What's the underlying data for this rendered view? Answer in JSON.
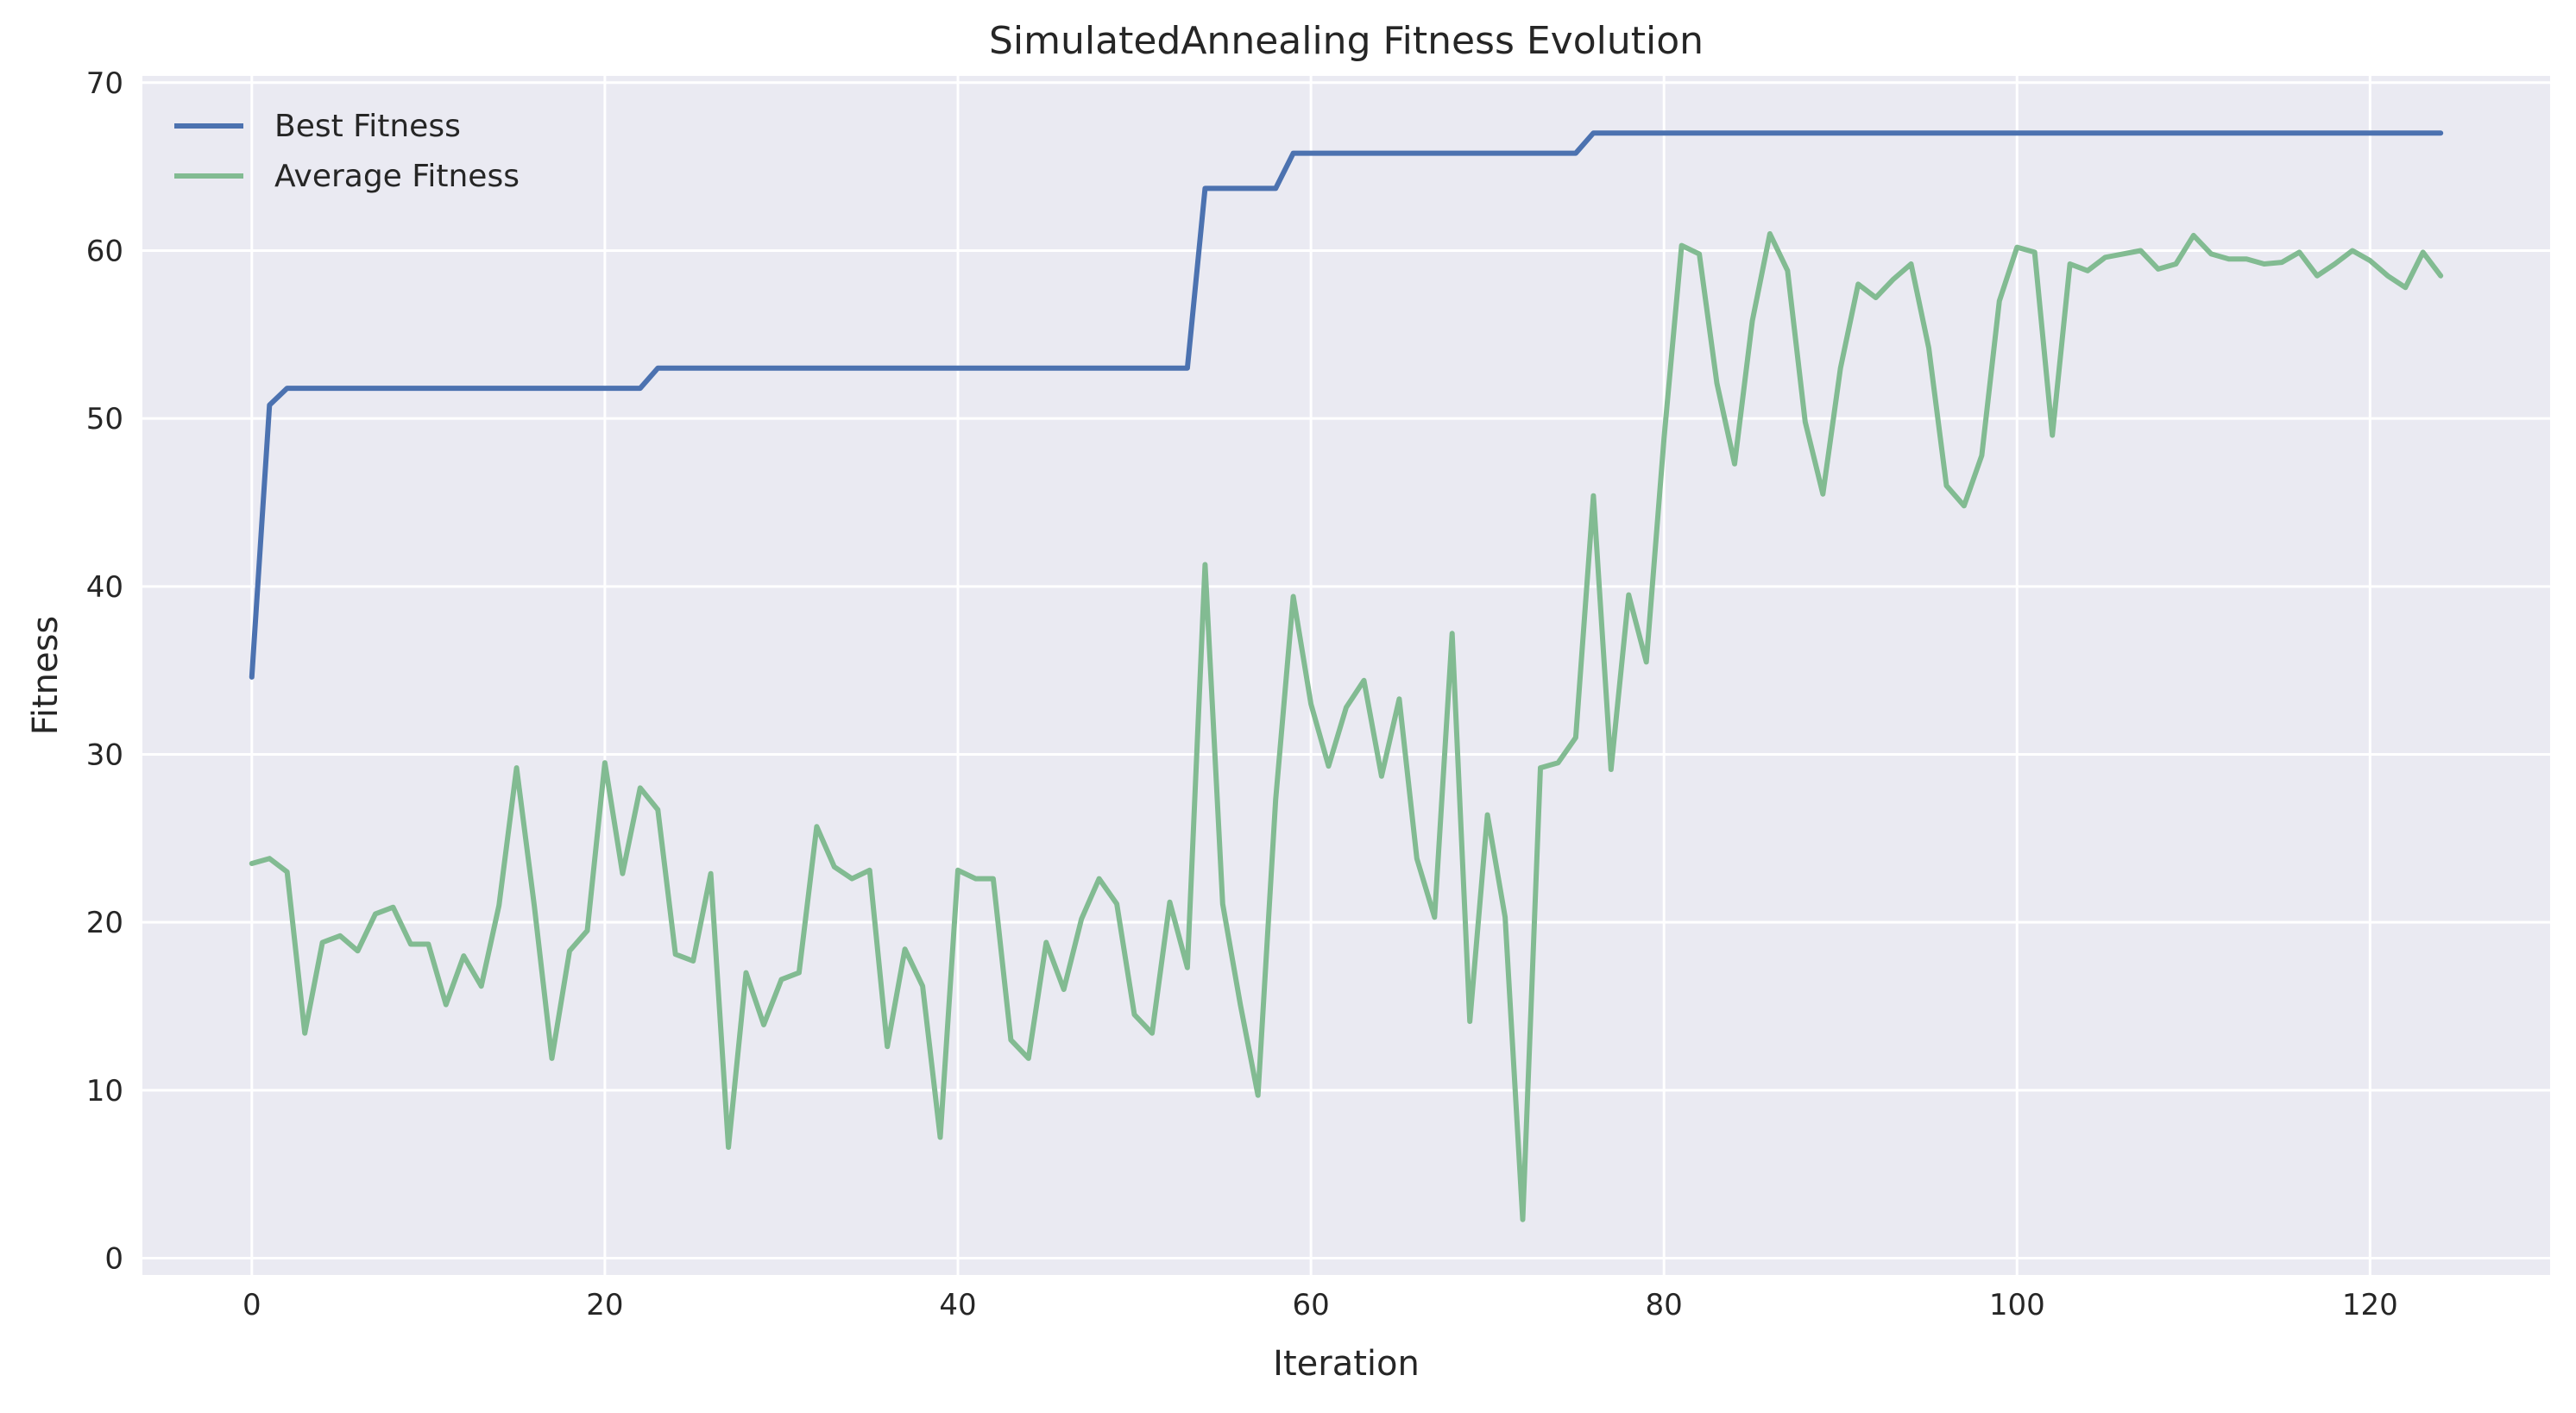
{
  "chart_data": {
    "type": "line",
    "title": "SimulatedAnnealing Fitness Evolution",
    "xlabel": "Iteration",
    "ylabel": "Fitness",
    "xlim": [
      -6.2,
      130.2
    ],
    "ylim": [
      -1.0,
      70.4
    ],
    "xticks": [
      0,
      20,
      40,
      60,
      80,
      100,
      120
    ],
    "yticks": [
      0,
      10,
      20,
      30,
      40,
      50,
      60,
      70
    ],
    "grid": true,
    "legend_position": "top-left",
    "background_color": "#eaeaf2",
    "grid_color": "#ffffff",
    "series": [
      {
        "name": "Best Fitness",
        "color": "#4c72b0",
        "values": [
          34.6,
          50.8,
          51.8,
          51.8,
          51.8,
          51.8,
          51.8,
          51.8,
          51.8,
          51.8,
          51.8,
          51.8,
          51.8,
          51.8,
          51.8,
          51.8,
          51.8,
          51.8,
          51.8,
          51.8,
          51.8,
          51.8,
          51.8,
          53.0,
          53.0,
          53.0,
          53.0,
          53.0,
          53.0,
          53.0,
          53.0,
          53.0,
          53.0,
          53.0,
          53.0,
          53.0,
          53.0,
          53.0,
          53.0,
          53.0,
          53.0,
          53.0,
          53.0,
          53.0,
          53.0,
          53.0,
          53.0,
          53.0,
          53.0,
          53.0,
          53.0,
          53.0,
          53.0,
          53.0,
          63.7,
          63.7,
          63.7,
          63.7,
          63.7,
          65.8,
          65.8,
          65.8,
          65.8,
          65.8,
          65.8,
          65.8,
          65.8,
          65.8,
          65.8,
          65.8,
          65.8,
          65.8,
          65.8,
          65.8,
          65.8,
          65.8,
          67.0,
          67.0,
          67.0,
          67.0,
          67.0,
          67.0,
          67.0,
          67.0,
          67.0,
          67.0,
          67.0,
          67.0,
          67.0,
          67.0,
          67.0,
          67.0,
          67.0,
          67.0,
          67.0,
          67.0,
          67.0,
          67.0,
          67.0,
          67.0,
          67.0,
          67.0,
          67.0,
          67.0,
          67.0,
          67.0,
          67.0,
          67.0,
          67.0,
          67.0,
          67.0,
          67.0,
          67.0,
          67.0,
          67.0,
          67.0,
          67.0,
          67.0,
          67.0,
          67.0,
          67.0,
          67.0,
          67.0,
          67.0,
          67.0
        ]
      },
      {
        "name": "Average Fitness",
        "color": "#82bb92",
        "values": [
          23.5,
          23.8,
          23.0,
          13.4,
          18.8,
          19.2,
          18.3,
          20.5,
          20.9,
          18.7,
          18.7,
          15.1,
          18.0,
          16.2,
          21.0,
          29.2,
          21.0,
          11.9,
          18.3,
          19.5,
          29.5,
          22.9,
          28.0,
          26.7,
          18.1,
          17.7,
          22.9,
          6.6,
          17.0,
          13.9,
          16.6,
          17.0,
          25.7,
          23.3,
          22.6,
          23.1,
          12.6,
          18.4,
          16.2,
          7.2,
          23.1,
          22.6,
          22.6,
          13.0,
          11.9,
          18.8,
          16.0,
          20.2,
          22.6,
          21.1,
          14.5,
          13.4,
          21.2,
          17.3,
          41.3,
          21.1,
          15.1,
          9.7,
          27.3,
          39.4,
          33.0,
          29.3,
          32.8,
          34.4,
          28.7,
          33.3,
          23.8,
          20.3,
          37.2,
          14.1,
          26.4,
          20.3,
          2.3,
          29.2,
          29.5,
          31.0,
          45.4,
          29.1,
          39.5,
          35.5,
          48.8,
          60.3,
          59.8,
          52.1,
          47.3,
          55.8,
          61.0,
          58.8,
          49.8,
          45.5,
          53.0,
          58.0,
          57.2,
          58.3,
          59.2,
          54.2,
          46.0,
          44.8,
          47.8,
          57.0,
          60.2,
          59.9,
          49.0,
          59.2,
          58.8,
          59.6,
          59.8,
          60.0,
          58.9,
          59.2,
          60.9,
          59.8,
          59.5,
          59.5,
          59.2,
          59.3,
          59.9,
          58.5,
          59.2,
          60.0,
          59.4,
          58.5,
          57.8,
          59.9,
          58.5
        ]
      }
    ]
  }
}
